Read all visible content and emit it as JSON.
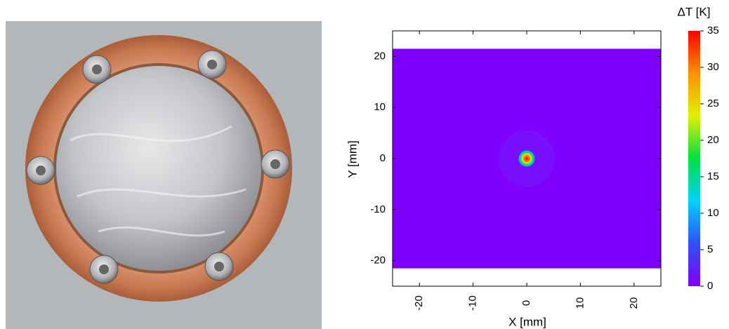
{
  "chart_data": {
    "type": "heatmap",
    "xlabel": "X [mm]",
    "ylabel": "Y [mm]",
    "colorbar_label": "ΔT [K]",
    "xlim": [
      -25,
      25
    ],
    "ylim": [
      -25,
      25
    ],
    "xticks": [
      -20,
      -10,
      0,
      10,
      20
    ],
    "yticks": [
      -20,
      -10,
      0,
      10,
      20
    ],
    "field_ylim": [
      -21.5,
      21.5
    ],
    "hotspot": {
      "x": 0,
      "y": 0,
      "peak": 35
    },
    "clim": [
      0,
      35
    ],
    "cticks": [
      0,
      5,
      10,
      15,
      20,
      25,
      30,
      35
    ],
    "colormap": [
      "#8000ff",
      "#3050ff",
      "#00d0ff",
      "#00e040",
      "#e0f000",
      "#ff9000",
      "#ff0000"
    ]
  }
}
